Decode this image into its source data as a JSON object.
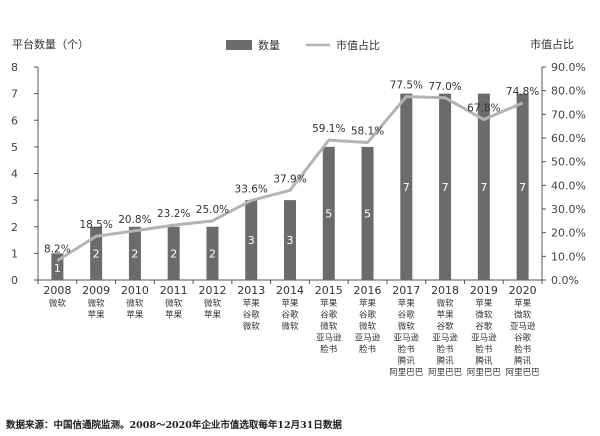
{
  "chart_data": {
    "type": "bar+line",
    "left_axis_title": "平台数量（个）",
    "right_axis_title": "市值占比",
    "legend": {
      "bar": "数量",
      "line": "市值占比"
    },
    "categories": [
      "2008",
      "2009",
      "2010",
      "2011",
      "2012",
      "2013",
      "2014",
      "2015",
      "2016",
      "2017",
      "2018",
      "2019",
      "2020"
    ],
    "companies": [
      [
        "微软"
      ],
      [
        "微软",
        "苹果"
      ],
      [
        "微软",
        "苹果"
      ],
      [
        "微软",
        "苹果"
      ],
      [
        "微软",
        "苹果"
      ],
      [
        "苹果",
        "谷歌",
        "微软"
      ],
      [
        "苹果",
        "谷歌",
        "微软"
      ],
      [
        "苹果",
        "谷歌",
        "微软",
        "亚马逊",
        "脸书"
      ],
      [
        "苹果",
        "谷歌",
        "微软",
        "亚马逊",
        "脸书"
      ],
      [
        "苹果",
        "谷歌",
        "微软",
        "亚马逊",
        "脸书",
        "腾讯",
        "阿里巴巴"
      ],
      [
        "微软",
        "苹果",
        "谷歌",
        "亚马逊",
        "脸书",
        "腾讯",
        "阿里巴巴"
      ],
      [
        "苹果",
        "微软",
        "谷歌",
        "亚马逊",
        "脸书",
        "腾讯",
        "阿里巴巴"
      ],
      [
        "苹果",
        "微软",
        "亚马逊",
        "谷歌",
        "脸书",
        "腾讯",
        "阿里巴巴"
      ]
    ],
    "series": [
      {
        "name": "数量",
        "type": "bar",
        "axis": "left",
        "values": [
          1,
          2,
          2,
          2,
          2,
          3,
          3,
          5,
          5,
          7,
          7,
          7,
          7
        ]
      },
      {
        "name": "市值占比",
        "type": "line",
        "axis": "right",
        "values": [
          8.2,
          18.5,
          20.8,
          23.2,
          25.0,
          33.6,
          37.9,
          59.1,
          58.1,
          77.5,
          77.0,
          67.8,
          74.8
        ],
        "labels": [
          "8.2%",
          "18.5%",
          "20.8%",
          "23.2%",
          "25.0%",
          "33.6%",
          "37.9%",
          "59.1%",
          "58.1%",
          "77.5%",
          "77.0%",
          "67.8%",
          "74.8%"
        ]
      }
    ],
    "left_ticks": [
      "0",
      "1",
      "2",
      "3",
      "4",
      "5",
      "6",
      "7",
      "8"
    ],
    "right_ticks": [
      "0.0%",
      "10.0%",
      "20.0%",
      "30.0%",
      "40.0%",
      "50.0%",
      "60.0%",
      "70.0%",
      "80.0%",
      "90.0%"
    ],
    "ylim_left": [
      0,
      8
    ],
    "ylim_right": [
      0,
      90
    ],
    "colors": {
      "bar": "#6b6b6b",
      "line": "#b4b4b4",
      "axis": "#555555"
    }
  },
  "source_note": "数据来源：中国信通院监测。2008～2020年企业市值选取每年12月31日数据"
}
